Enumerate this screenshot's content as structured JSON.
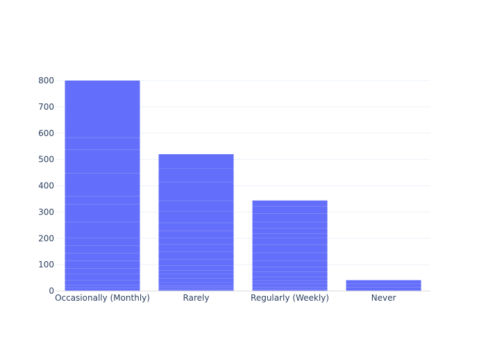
{
  "chart_data": {
    "type": "bar",
    "categories": [
      "Occasionally (Monthly)",
      "Rarely",
      "Regularly (Weekly)",
      "Never"
    ],
    "values": [
      800,
      520,
      344,
      41
    ],
    "title": "",
    "xlabel": "",
    "ylabel": "",
    "ylim": [
      0,
      800
    ],
    "yticks": [
      0,
      100,
      200,
      300,
      400,
      500,
      600,
      700,
      800
    ],
    "grid": true,
    "bar_color": "#636efa",
    "stack_boundaries": [
      [
        11,
        22,
        41,
        64,
        86,
        115,
        144,
        172,
        201,
        262,
        330,
        360,
        447,
        537,
        583
      ],
      [
        5,
        12,
        20,
        32,
        48,
        64,
        78,
        96,
        121,
        149,
        177,
        201,
        229,
        259,
        302,
        343,
        414,
        465
      ],
      [
        6,
        14,
        28,
        39,
        53,
        73,
        91,
        114,
        145,
        176,
        201,
        218,
        239,
        262,
        295,
        322
      ],
      [
        15,
        27
      ]
    ]
  }
}
